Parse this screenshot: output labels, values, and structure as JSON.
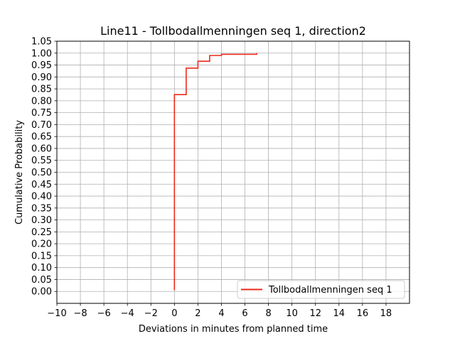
{
  "chart_data": {
    "type": "line",
    "title": "Line11 - Tollbodallmenningen seq 1, direction2",
    "xlabel": "Deviations in minutes from planned time",
    "ylabel": "Cumulative Probability",
    "xlim": [
      -10,
      20
    ],
    "ylim": [
      -0.05,
      1.05
    ],
    "xticks": [
      "−10",
      "−8",
      "−6",
      "−4",
      "−2",
      "0",
      "2",
      "4",
      "6",
      "8",
      "10",
      "12",
      "14",
      "16",
      "18"
    ],
    "yticks": [
      "0.00",
      "0.05",
      "0.10",
      "0.15",
      "0.20",
      "0.25",
      "0.30",
      "0.35",
      "0.40",
      "0.45",
      "0.50",
      "0.55",
      "0.60",
      "0.65",
      "0.70",
      "0.75",
      "0.80",
      "0.85",
      "0.90",
      "0.95",
      "1.00",
      "1.05"
    ],
    "grid": true,
    "legend": "lower-right",
    "series": [
      {
        "name": "Tollbodallmenningen seq 1",
        "color": "#ee2a1b",
        "step": "post",
        "x": [
          0,
          0,
          1,
          2,
          3,
          4,
          5,
          6,
          7
        ],
        "y": [
          0.005,
          0.826,
          0.937,
          0.966,
          0.99,
          0.995,
          0.995,
          0.995,
          1.0
        ]
      }
    ]
  }
}
